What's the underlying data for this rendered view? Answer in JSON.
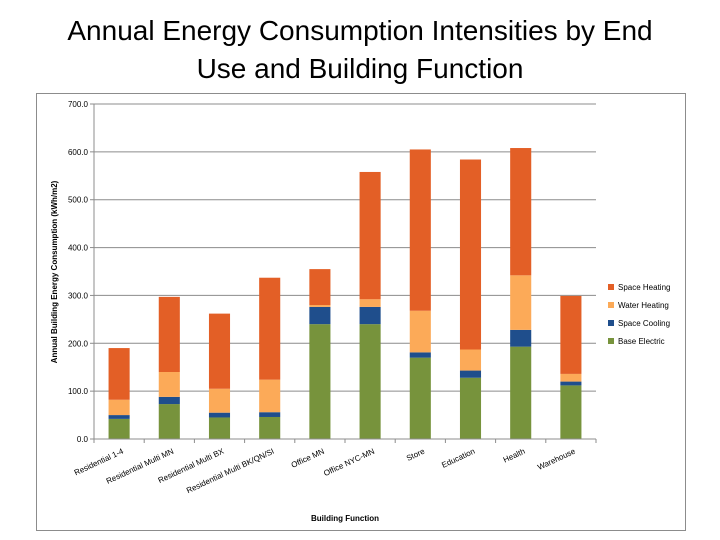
{
  "slide": {
    "title_line1": "Annual Energy Consumption Intensities by End",
    "title_line2": "Use and Building Function"
  },
  "chart_data": {
    "type": "bar",
    "stacked": true,
    "title": "Annual Energy Consumption Intensities by End Use and Building Function",
    "xlabel": "Building Function",
    "ylabel": "Annual Building Energy Consumption (kWh/m2)",
    "ylim": [
      0,
      700
    ],
    "yticks": [
      "0.0",
      "100.0",
      "200.0",
      "300.0",
      "400.0",
      "500.0",
      "600.0",
      "700.0"
    ],
    "grid": true,
    "legend_position": "right",
    "categories": [
      "Residential 1-4",
      "Residential Multi MN",
      "Residential Multi BX",
      "Residential Multi BK/QN/SI",
      "Office MN",
      "Office NYC-MN",
      "Store",
      "Education",
      "Health",
      "Warehouse"
    ],
    "series": [
      {
        "name": "Base Electric",
        "color": "#77933c",
        "values": [
          42,
          73,
          45,
          46,
          240,
          240,
          170,
          128,
          193,
          112
        ]
      },
      {
        "name": "Space Cooling",
        "color": "#1f4e8c",
        "values": [
          8,
          15,
          10,
          10,
          36,
          36,
          11,
          15,
          35,
          8
        ]
      },
      {
        "name": "Water Heating",
        "color": "#fcaa58",
        "values": [
          32,
          52,
          50,
          68,
          4,
          16,
          87,
          44,
          114,
          16
        ]
      },
      {
        "name": "Space Heating",
        "color": "#e35f26",
        "values": [
          108,
          157,
          157,
          213,
          75,
          266,
          337,
          397,
          266,
          163
        ]
      }
    ]
  }
}
